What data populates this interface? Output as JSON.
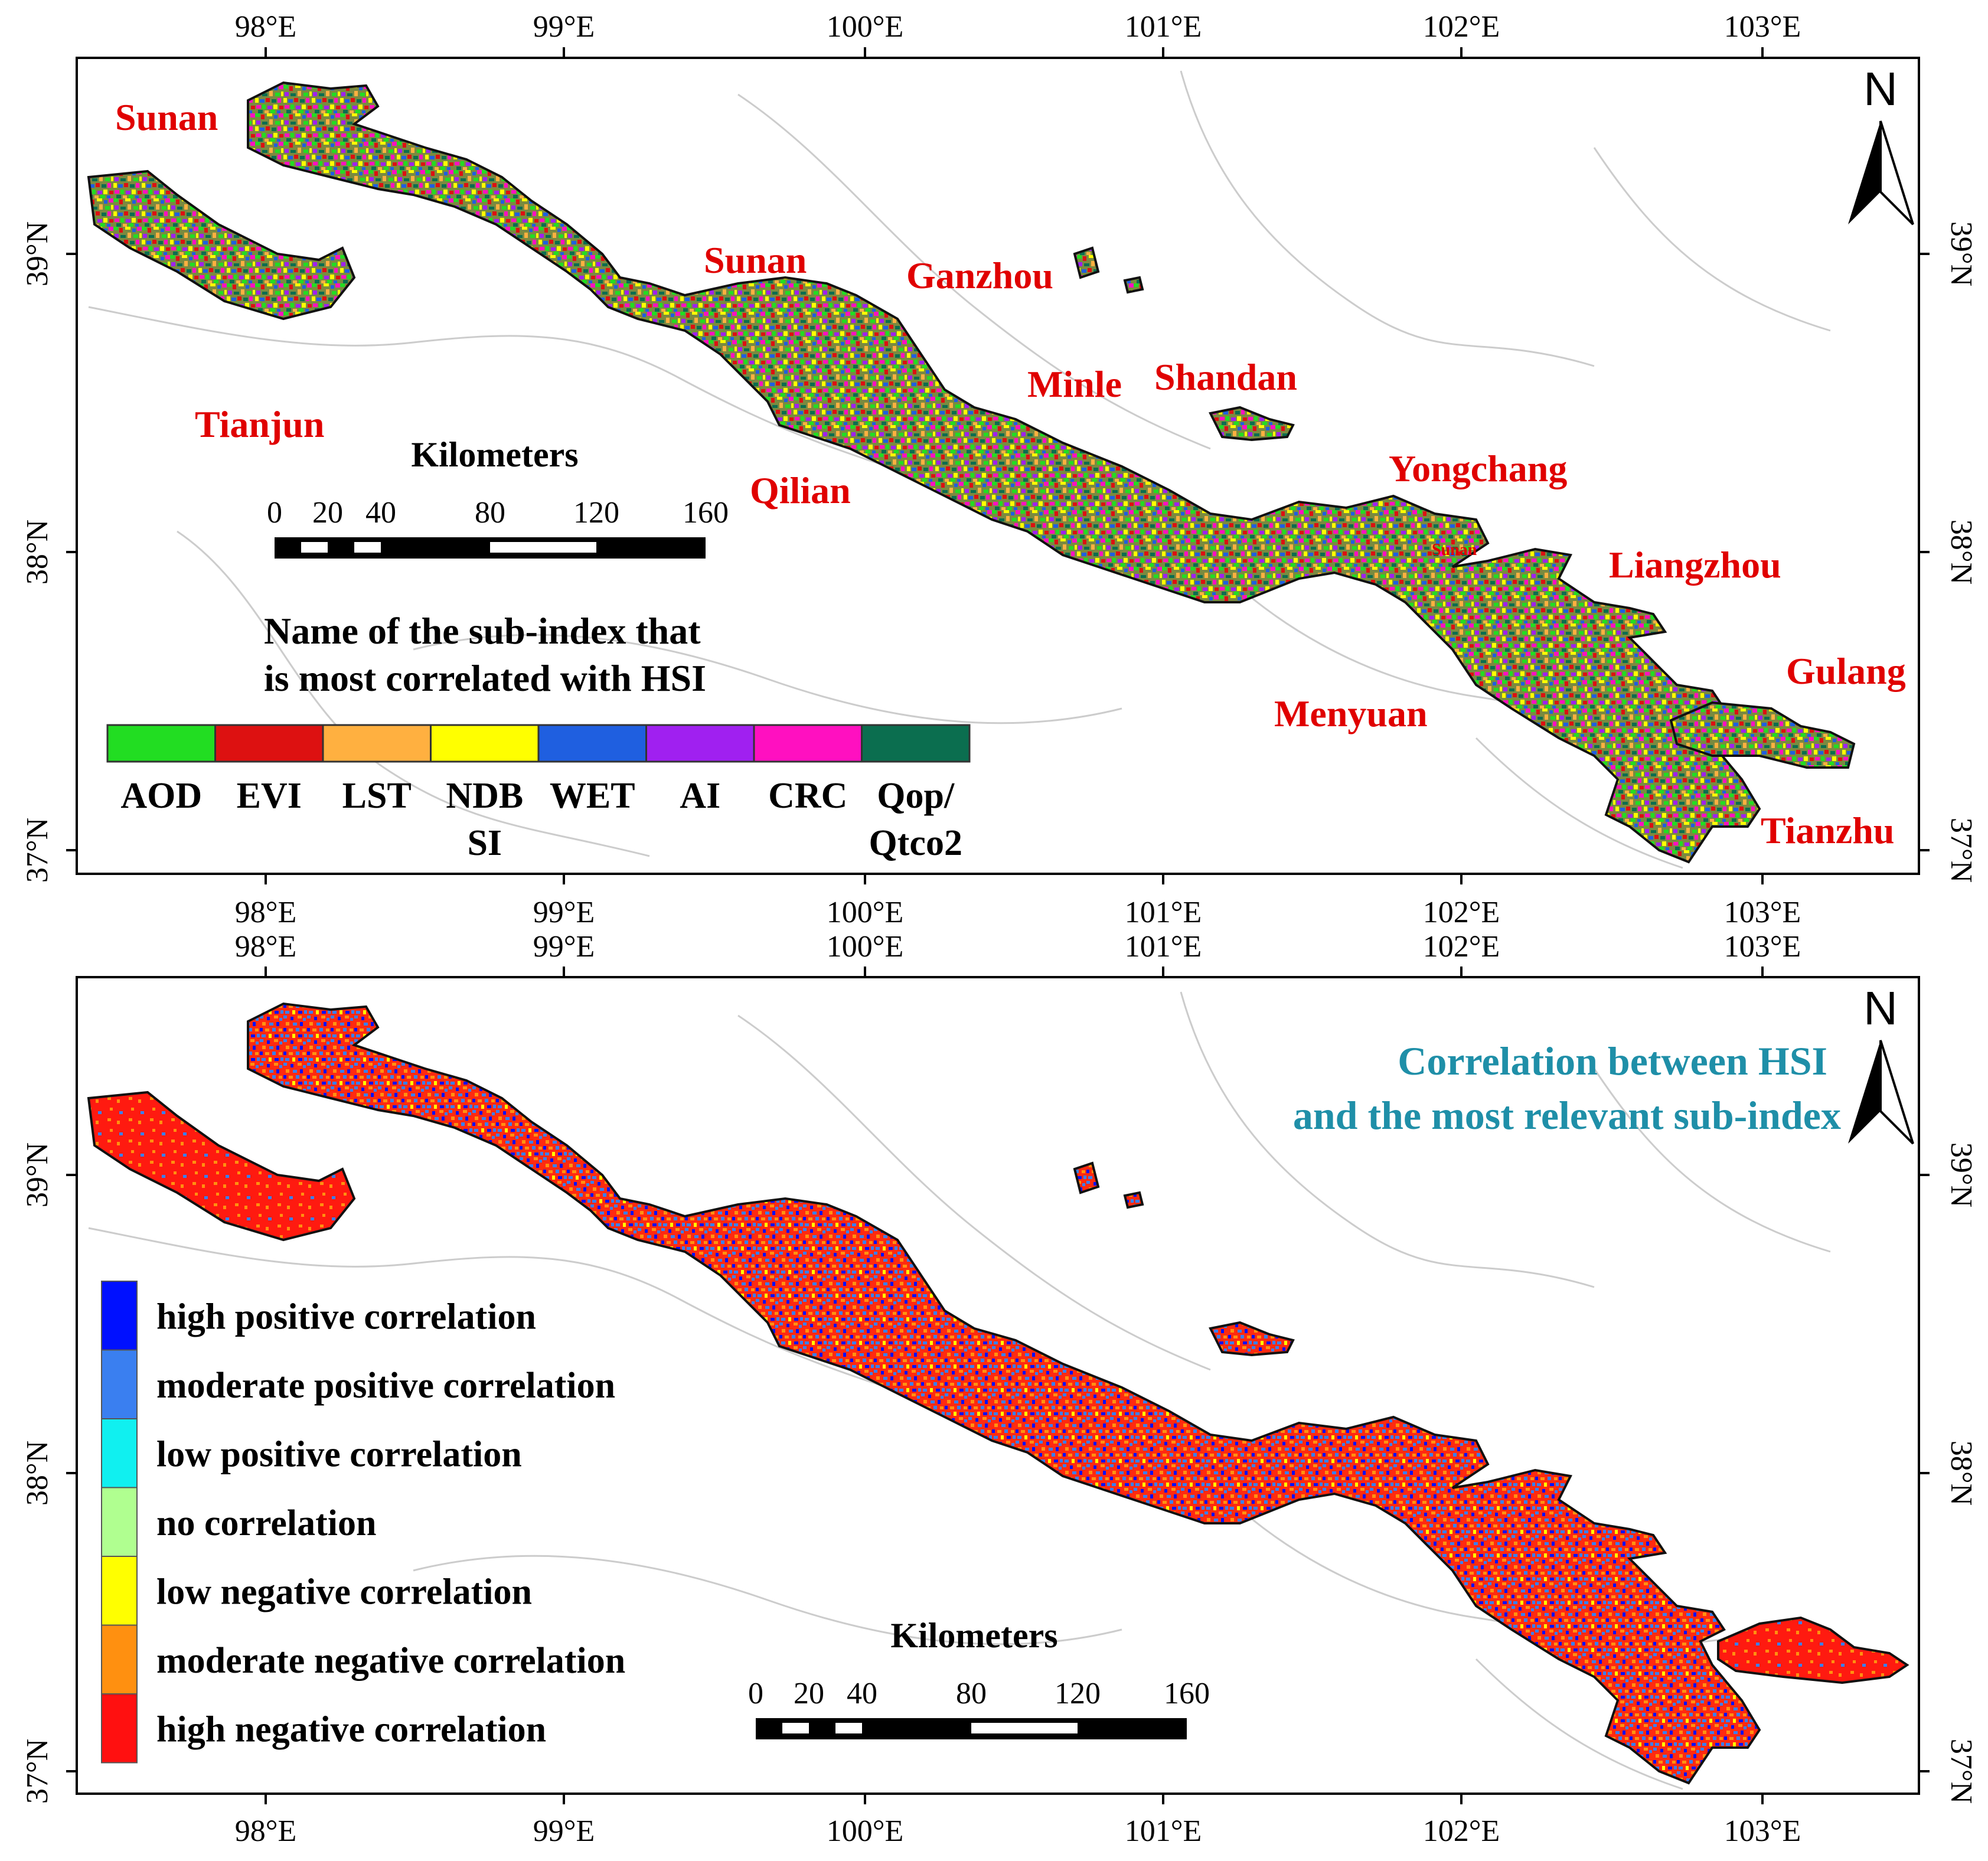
{
  "colors": {
    "place_label": "#e00000",
    "title_teal": "#1f8fa8",
    "frame": "#000000",
    "admin_lines": "#c8c8c8"
  },
  "axes": {
    "lon_labels": [
      "98°E",
      "99°E",
      "100°E",
      "101°E",
      "102°E",
      "103°E"
    ],
    "lat_labels": [
      "39°N",
      "38°N",
      "37°N"
    ]
  },
  "north_arrow": {
    "label": "N",
    "icon": "north-arrow-icon"
  },
  "map1": {
    "place_labels": [
      "Sunan",
      "Sunan",
      "Ganzhou",
      "Minle",
      "Shandan",
      "Tianjun",
      "Qilian",
      "Yongchang",
      "Sunan",
      "Liangzhou",
      "Menyuan",
      "Gulang",
      "Tianzhu"
    ],
    "scale_bar": {
      "title": "Kilometers",
      "ticks": [
        "0",
        "20",
        "40",
        "80",
        "120",
        "160"
      ]
    },
    "legend": {
      "title_line1": "Name of the sub-index that",
      "title_line2": "is most correlated with HSI",
      "items": [
        {
          "label": "AOD",
          "label2": "",
          "color": "#22dd22"
        },
        {
          "label": "EVI",
          "label2": "",
          "color": "#dd1111"
        },
        {
          "label": "LST",
          "label2": "",
          "color": "#ffb040"
        },
        {
          "label": "NDB",
          "label2": "SI",
          "color": "#ffff00"
        },
        {
          "label": "WET",
          "label2": "",
          "color": "#1f5fe0"
        },
        {
          "label": "AI",
          "label2": "",
          "color": "#a020f0"
        },
        {
          "label": "CRC",
          "label2": "",
          "color": "#ff10c0"
        },
        {
          "label": "Qop/",
          "label2": "Qtco2",
          "color": "#0b6e4f"
        }
      ]
    }
  },
  "map2": {
    "title_line1": "Correlation between HSI",
    "title_line2": "and the most relevant sub-index",
    "scale_bar": {
      "title": "Kilometers",
      "ticks": [
        "0",
        "20",
        "40",
        "80",
        "120",
        "160"
      ]
    },
    "legend": {
      "items": [
        {
          "label": "high positive correlation",
          "color": "#0010ff"
        },
        {
          "label": "moderate positive correlation",
          "color": "#3a7ff0"
        },
        {
          "label": "low positive correlation",
          "color": "#10f0f0"
        },
        {
          "label": "no correlation",
          "color": "#b0ff90"
        },
        {
          "label": "low negative correlation",
          "color": "#ffff00"
        },
        {
          "label": "moderate negative correlation",
          "color": "#ff9010"
        },
        {
          "label": "high negative correlation",
          "color": "#ff1010"
        }
      ]
    }
  }
}
